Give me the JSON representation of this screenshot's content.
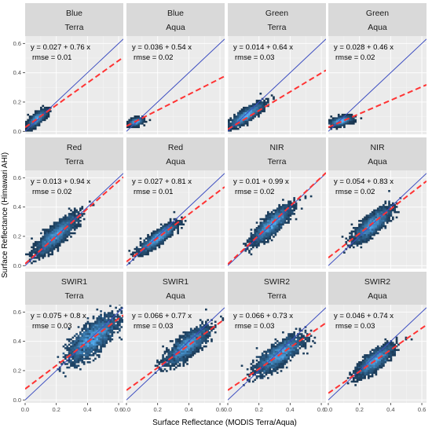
{
  "chart_data": {
    "type": "scatter",
    "style": "faceted 2D-density scatter with 1:1 line and linear fit",
    "xlabel": "Surface  Reflectance  (MODIS Terra/Aqua)",
    "ylabel": "Surface  Reflectance  (Himawari AHI)",
    "xlim": [
      0,
      0.63
    ],
    "ylim": [
      -0.02,
      0.65
    ],
    "x_ticks": [
      "0.0",
      "0.2",
      "0.4",
      "0.6"
    ],
    "y_ticks": [
      "0.0",
      "0.2",
      "0.4",
      "0.6"
    ],
    "grid": true,
    "colors": {
      "strip": "#d9d9d9",
      "panel": "#ebebeb",
      "one_to_one_line": "#3b4cc0",
      "fit_line": "#ff3333",
      "density_low": "#132b43",
      "density_high": "#56b1f7"
    },
    "panels": [
      {
        "band": "Blue",
        "satellite": "Terra",
        "intercept": 0.027,
        "slope": 0.76,
        "rmse": "0.01",
        "eq_text": "y = 0.027 + 0.76 x",
        "rmse_text": "rmse = 0.01",
        "cloud": {
          "cx": 0.075,
          "cy": 0.085,
          "sx": 0.028,
          "sy": 0.028,
          "rho": 0.75
        }
      },
      {
        "band": "Blue",
        "satellite": "Aqua",
        "intercept": 0.036,
        "slope": 0.54,
        "rmse": "0.02",
        "eq_text": "y = 0.036 + 0.54 x",
        "rmse_text": "rmse = 0.02",
        "cloud": {
          "cx": 0.06,
          "cy": 0.065,
          "sx": 0.02,
          "sy": 0.012,
          "rho": 0.4
        }
      },
      {
        "band": "Green",
        "satellite": "Terra",
        "intercept": 0.014,
        "slope": 0.64,
        "rmse": "0.03",
        "eq_text": "y = 0.014 + 0.64 x",
        "rmse_text": "rmse = 0.03",
        "cloud": {
          "cx": 0.12,
          "cy": 0.11,
          "sx": 0.05,
          "sy": 0.038,
          "rho": 0.85
        }
      },
      {
        "band": "Green",
        "satellite": "Aqua",
        "intercept": 0.028,
        "slope": 0.46,
        "rmse": "0.02",
        "eq_text": "y = 0.028 + 0.46 x",
        "rmse_text": "rmse = 0.02",
        "cloud": {
          "cx": 0.08,
          "cy": 0.07,
          "sx": 0.03,
          "sy": 0.015,
          "rho": 0.5
        }
      },
      {
        "band": "Red",
        "satellite": "Terra",
        "intercept": 0.013,
        "slope": 0.94,
        "rmse": "0.02",
        "eq_text": "y = 0.013 + 0.94 x",
        "rmse_text": "rmse = 0.02",
        "cloud": {
          "cx": 0.2,
          "cy": 0.21,
          "sx": 0.065,
          "sy": 0.065,
          "rho": 0.85
        }
      },
      {
        "band": "Red",
        "satellite": "Aqua",
        "intercept": 0.027,
        "slope": 0.81,
        "rmse": "0.01",
        "eq_text": "y = 0.027 + 0.81 x",
        "rmse_text": "rmse = 0.01",
        "cloud": {
          "cx": 0.2,
          "cy": 0.19,
          "sx": 0.055,
          "sy": 0.047,
          "rho": 0.88
        }
      },
      {
        "band": "NIR",
        "satellite": "Terra",
        "intercept": 0.01,
        "slope": 0.99,
        "rmse": "0.02",
        "eq_text": "y = 0.01 + 0.99 x",
        "rmse_text": "rmse = 0.02",
        "cloud": {
          "cx": 0.28,
          "cy": 0.28,
          "sx": 0.06,
          "sy": 0.06,
          "rho": 0.85
        }
      },
      {
        "band": "NIR",
        "satellite": "Aqua",
        "intercept": 0.054,
        "slope": 0.83,
        "rmse": "0.02",
        "eq_text": "y = 0.054 + 0.83 x",
        "rmse_text": "rmse = 0.02",
        "cloud": {
          "cx": 0.28,
          "cy": 0.28,
          "sx": 0.055,
          "sy": 0.055,
          "rho": 0.8
        }
      },
      {
        "band": "SWIR1",
        "satellite": "Terra",
        "intercept": 0.075,
        "slope": 0.8,
        "rmse": "0.03",
        "eq_text": "y = 0.075 + 0.8 x",
        "rmse_text": "rmse = 0.03",
        "cloud": {
          "cx": 0.43,
          "cy": 0.42,
          "sx": 0.075,
          "sy": 0.075,
          "rho": 0.75
        }
      },
      {
        "band": "SWIR1",
        "satellite": "Aqua",
        "intercept": 0.066,
        "slope": 0.77,
        "rmse": "0.03",
        "eq_text": "y = 0.066 + 0.77 x",
        "rmse_text": "rmse = 0.03",
        "cloud": {
          "cx": 0.39,
          "cy": 0.37,
          "sx": 0.065,
          "sy": 0.06,
          "rho": 0.8
        }
      },
      {
        "band": "SWIR2",
        "satellite": "Terra",
        "intercept": 0.066,
        "slope": 0.73,
        "rmse": "0.03",
        "eq_text": "y = 0.066 + 0.73 x",
        "rmse_text": "rmse = 0.03",
        "cloud": {
          "cx": 0.33,
          "cy": 0.31,
          "sx": 0.07,
          "sy": 0.06,
          "rho": 0.78
        }
      },
      {
        "band": "SWIR2",
        "satellite": "Aqua",
        "intercept": 0.046,
        "slope": 0.74,
        "rmse": "0.03",
        "eq_text": "y = 0.046 + 0.74 x",
        "rmse_text": "rmse = 0.03",
        "cloud": {
          "cx": 0.3,
          "cy": 0.27,
          "sx": 0.055,
          "sy": 0.05,
          "rho": 0.8
        }
      }
    ]
  }
}
